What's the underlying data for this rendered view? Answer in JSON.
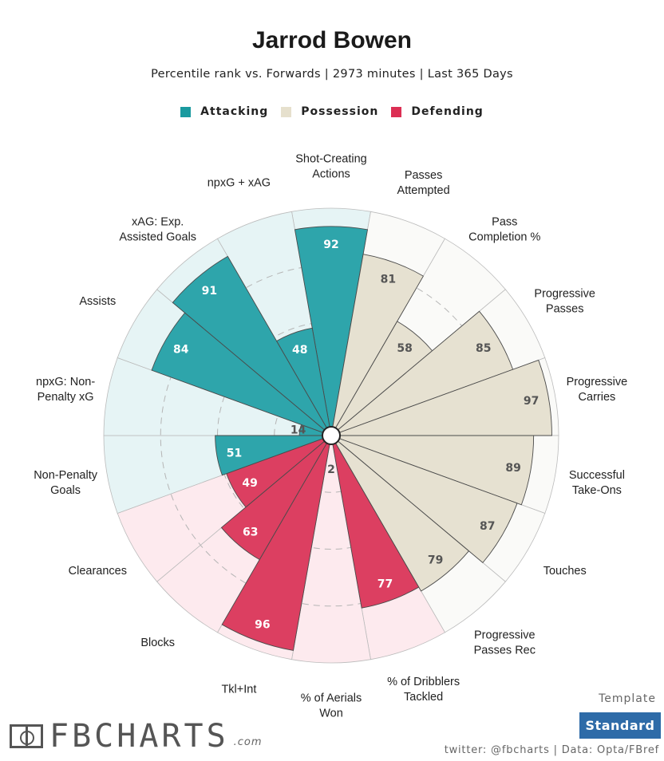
{
  "header": {
    "title": "Jarrod Bowen",
    "subtitle": "Percentile rank vs. Forwards | 2973 minutes | Last 365 Days"
  },
  "legend": [
    {
      "label": "Attacking",
      "color": "#1a9a9f"
    },
    {
      "label": "Possession",
      "color": "#e6e0cd"
    },
    {
      "label": "Defending",
      "color": "#dc2f54"
    }
  ],
  "chart_data": {
    "type": "radar-bar",
    "title": "Jarrod Bowen",
    "scale": [
      0,
      100
    ],
    "categories": [
      {
        "name": "Shot-Creating Actions",
        "lines": [
          "Shot-Creating",
          "Actions"
        ],
        "value": 92,
        "group": "Attacking"
      },
      {
        "name": "Passes Attempted",
        "lines": [
          "Passes",
          "Attempted"
        ],
        "value": 81,
        "group": "Possession"
      },
      {
        "name": "Pass Completion %",
        "lines": [
          "Pass",
          "Completion %"
        ],
        "value": 58,
        "group": "Possession"
      },
      {
        "name": "Progressive Passes",
        "lines": [
          "Progressive",
          "Passes"
        ],
        "value": 85,
        "group": "Possession"
      },
      {
        "name": "Progressive Carries",
        "lines": [
          "Progressive",
          "Carries"
        ],
        "value": 97,
        "group": "Possession"
      },
      {
        "name": "Successful Take-Ons",
        "lines": [
          "Successful",
          "Take-Ons"
        ],
        "value": 89,
        "group": "Possession"
      },
      {
        "name": "Touches",
        "lines": [
          "Touches"
        ],
        "value": 87,
        "group": "Possession"
      },
      {
        "name": "Progressive Passes Rec",
        "lines": [
          "Progressive",
          "Passes Rec"
        ],
        "value": 79,
        "group": "Possession"
      },
      {
        "name": "% of Dribblers Tackled",
        "lines": [
          "% of Dribblers",
          "Tackled"
        ],
        "value": 77,
        "group": "Defending"
      },
      {
        "name": "% of Aerials Won",
        "lines": [
          "% of Aerials",
          "Won"
        ],
        "value": 2,
        "group": "Defending"
      },
      {
        "name": "Tkl+Int",
        "lines": [
          "Tkl+Int"
        ],
        "value": 96,
        "group": "Defending"
      },
      {
        "name": "Blocks",
        "lines": [
          "Blocks"
        ],
        "value": 63,
        "group": "Defending"
      },
      {
        "name": "Clearances",
        "lines": [
          "Clearances"
        ],
        "value": 49,
        "group": "Defending"
      },
      {
        "name": "Non-Penalty Goals",
        "lines": [
          "Non-Penalty",
          "Goals"
        ],
        "value": 51,
        "group": "Attacking"
      },
      {
        "name": "npxG: Non-Penalty xG",
        "lines": [
          "npxG: Non-",
          "Penalty xG"
        ],
        "value": 14,
        "group": "Attacking"
      },
      {
        "name": "Assists",
        "lines": [
          "Assists"
        ],
        "value": 84,
        "group": "Attacking"
      },
      {
        "name": "xAG: Exp. Assisted Goals",
        "lines": [
          "xAG: Exp.",
          "Assisted Goals"
        ],
        "value": 91,
        "group": "Attacking"
      },
      {
        "name": "npxG + xAG",
        "lines": [
          "npxG + xAG"
        ],
        "value": 48,
        "group": "Attacking"
      }
    ],
    "group_colors": {
      "Attacking": {
        "fill": "#2ea5ab",
        "bg": "#e6f4f5",
        "text": "#ffffff"
      },
      "Possession": {
        "fill": "#e6e1d1",
        "bg": "#fafaf8",
        "text": "#555555"
      },
      "Defending": {
        "fill": "#dc3f61",
        "bg": "#fdeaee",
        "text": "#ffffff"
      }
    }
  },
  "footer": {
    "logo_text": "FBCHARTS",
    "logo_suffix": ".com",
    "template_label": "Template",
    "template_value": "Standard",
    "credits": "twitter: @fbcharts | Data: Opta/FBref"
  }
}
